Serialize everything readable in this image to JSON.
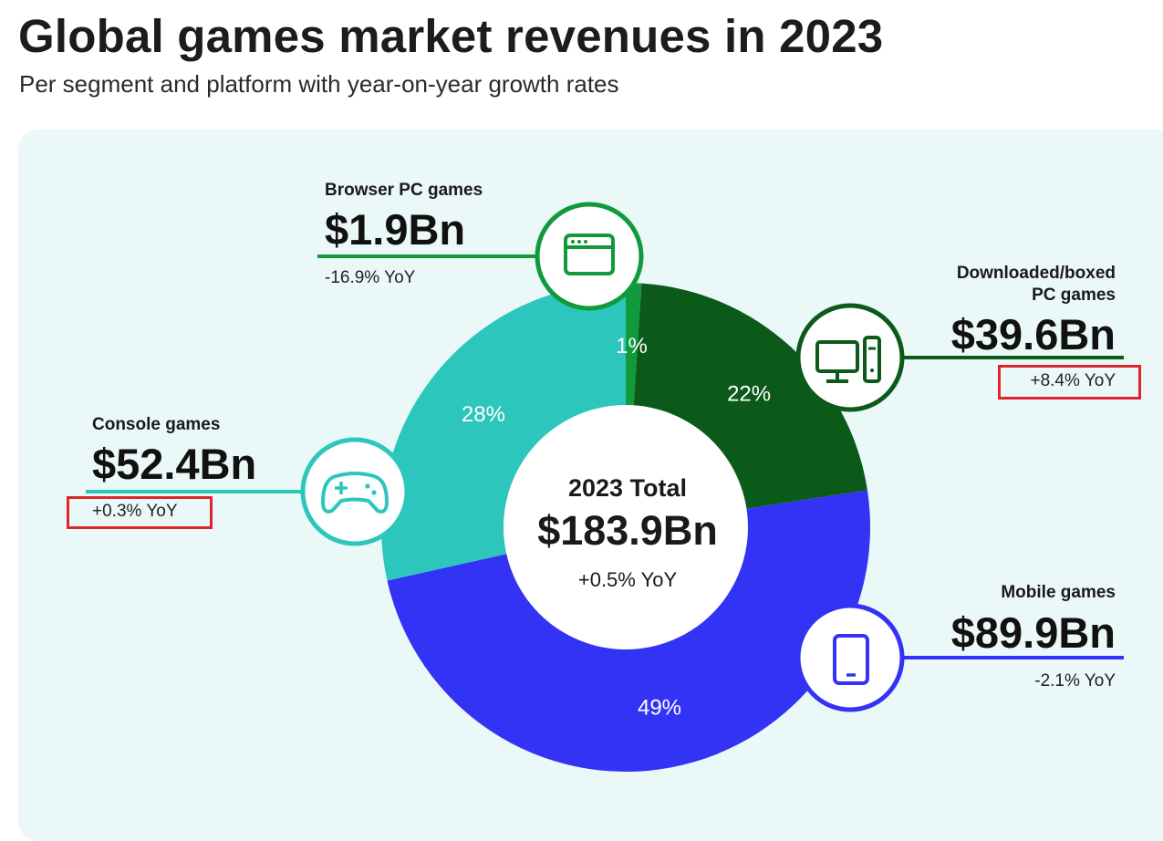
{
  "title": "Global games market revenues in 2023",
  "subtitle": "Per segment and platform with year-on-year growth rates",
  "center": {
    "title": "2023 Total",
    "value": "$183.9Bn",
    "yoy": "+0.5% YoY"
  },
  "chart_data": {
    "type": "pie",
    "title": "Global games market revenues in 2023",
    "total": 183.9,
    "unit": "Bn USD",
    "slices": [
      {
        "key": "browser",
        "name": "Browser PC games",
        "value": 1.9,
        "percent": 1,
        "percent_label": "1%",
        "value_label": "$1.9Bn",
        "yoy": "-16.9% YoY",
        "color": "#109a3c",
        "icon": "browser-window-icon"
      },
      {
        "key": "pc",
        "name": "Downloaded/boxed PC games",
        "name_lines": [
          "Downloaded/boxed",
          "PC games"
        ],
        "value": 39.6,
        "percent": 22,
        "percent_label": "22%",
        "value_label": "$39.6Bn",
        "yoy": "+8.4% YoY",
        "color": "#0b5a1a",
        "icon": "desktop-computer-icon"
      },
      {
        "key": "mobile",
        "name": "Mobile games",
        "value": 89.9,
        "percent": 49,
        "percent_label": "49%",
        "value_label": "$89.9Bn",
        "yoy": "-2.1% YoY",
        "color": "#3333f5",
        "icon": "smartphone-icon"
      },
      {
        "key": "console",
        "name": "Console games",
        "value": 52.4,
        "percent": 28,
        "percent_label": "28%",
        "value_label": "$52.4Bn",
        "yoy": "+0.3% YoY",
        "color": "#2dc6bd",
        "icon": "gamepad-icon"
      }
    ]
  },
  "colors": {
    "panel": "#eaf8f7",
    "highlight": "#e0262c"
  }
}
